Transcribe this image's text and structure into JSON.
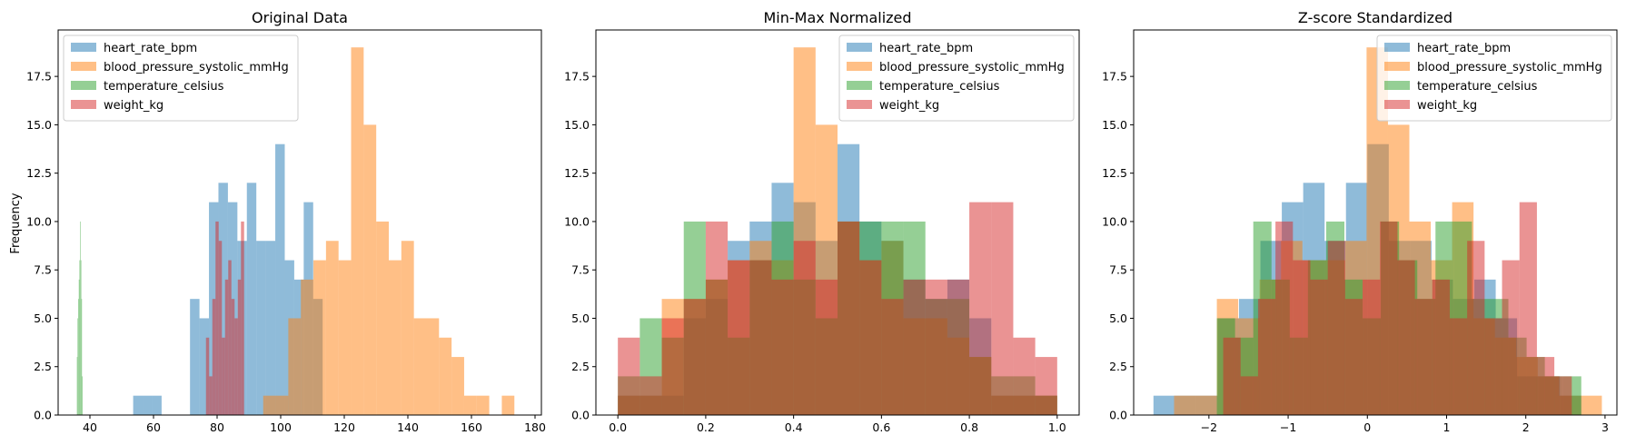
{
  "figure": {
    "ylabel": "Frequency"
  },
  "legend_entries": [
    {
      "name": "heart_rate_bpm",
      "color": "#1f77b4"
    },
    {
      "name": "blood_pressure_systolic_mmHg",
      "color": "#ff7f0e"
    },
    {
      "name": "temperature_celsius",
      "color": "#2ca02c"
    },
    {
      "name": "weight_kg",
      "color": "#d62728"
    }
  ],
  "chart_data": [
    {
      "type": "bar",
      "title": "Original Data",
      "xlabel": "",
      "ylabel": "Frequency",
      "xlim": [
        30,
        182
      ],
      "ylim": [
        0,
        19.9
      ],
      "xticks": [
        40,
        60,
        80,
        100,
        120,
        140,
        160,
        180
      ],
      "xtick_labels": [
        "40",
        "60",
        "80",
        "100",
        "120",
        "140",
        "160",
        "180"
      ],
      "yticks": [
        0,
        2.5,
        5,
        7.5,
        10,
        12.5,
        15,
        17.5
      ],
      "ytick_labels": [
        "0.0",
        "2.5",
        "5.0",
        "7.5",
        "10.0",
        "12.5",
        "15.0",
        "17.5"
      ],
      "legend_position": "upper left",
      "alpha": 0.5,
      "series": [
        {
          "name": "heart_rate_bpm",
          "color": "#1f77b4",
          "bin_start": 53.6,
          "bin_width": 2.98,
          "counts": [
            1,
            1,
            1,
            0,
            0,
            0,
            6,
            5,
            11,
            12,
            11,
            9,
            12,
            9,
            9,
            14,
            8,
            7,
            11,
            6
          ]
        },
        {
          "name": "blood_pressure_systolic_mmHg",
          "color": "#ff7f0e",
          "bin_start": 94.5,
          "bin_width": 3.95,
          "counts": [
            1,
            1,
            5,
            7,
            8,
            9,
            8,
            19,
            15,
            10,
            8,
            9,
            5,
            5,
            4,
            3,
            1,
            1,
            0,
            1
          ]
        },
        {
          "name": "temperature_celsius",
          "color": "#2ca02c",
          "bin_start": 35.9,
          "bin_width": 0.2,
          "counts": [
            3,
            5,
            6,
            7,
            8,
            10,
            8,
            6,
            2,
            0,
            0,
            0,
            0,
            0,
            0,
            0,
            0,
            0,
            0,
            0
          ]
        },
        {
          "name": "weight_kg",
          "color": "#d62728",
          "bin_start": 76.5,
          "bin_width": 1.0,
          "counts": [
            4,
            2,
            6,
            10,
            9,
            4,
            7,
            8,
            6,
            5,
            7,
            10,
            0,
            0,
            0,
            0,
            0,
            0,
            0,
            0
          ]
        }
      ]
    },
    {
      "type": "bar",
      "title": "Min-Max Normalized",
      "xlabel": "",
      "ylabel": "",
      "xlim": [
        -0.05,
        1.05
      ],
      "ylim": [
        0,
        19.9
      ],
      "xticks": [
        0,
        0.2,
        0.4,
        0.6,
        0.8,
        1.0
      ],
      "xtick_labels": [
        "0.0",
        "0.2",
        "0.4",
        "0.6",
        "0.8",
        "1.0"
      ],
      "yticks": [
        0,
        2.5,
        5,
        7.5,
        10,
        12.5,
        15,
        17.5
      ],
      "ytick_labels": [
        "0.0",
        "2.5",
        "5.0",
        "7.5",
        "10.0",
        "12.5",
        "15.0",
        "17.5"
      ],
      "legend_position": "upper right",
      "alpha": 0.5,
      "series": [
        {
          "name": "heart_rate_bpm",
          "color": "#1f77b4",
          "bin_start": 0,
          "bin_width": 0.05,
          "counts": [
            1,
            1,
            1,
            5,
            6,
            9,
            10,
            12,
            11,
            9,
            14,
            10,
            9,
            7,
            6,
            7,
            5,
            1,
            1,
            1
          ]
        },
        {
          "name": "blood_pressure_systolic_mmHg",
          "color": "#ff7f0e",
          "bin_start": 0,
          "bin_width": 0.05,
          "counts": [
            1,
            1,
            6,
            6,
            7,
            8,
            9,
            8,
            19,
            15,
            10,
            8,
            9,
            5,
            5,
            4,
            3,
            1,
            1,
            1
          ]
        },
        {
          "name": "temperature_celsius",
          "color": "#2ca02c",
          "bin_start": 0,
          "bin_width": 0.05,
          "counts": [
            2,
            5,
            4,
            10,
            7,
            4,
            8,
            10,
            7,
            5,
            10,
            10,
            10,
            10,
            6,
            6,
            3,
            2,
            2,
            1
          ]
        },
        {
          "name": "weight_kg",
          "color": "#d62728",
          "bin_start": 0,
          "bin_width": 0.05,
          "counts": [
            4,
            2,
            5,
            6,
            10,
            8,
            8,
            7,
            9,
            7,
            10,
            8,
            6,
            7,
            7,
            7,
            11,
            11,
            4,
            3
          ]
        }
      ]
    },
    {
      "type": "bar",
      "title": "Z-score Standardized",
      "xlabel": "",
      "ylabel": "",
      "xlim": [
        -2.95,
        3.15
      ],
      "ylim": [
        0,
        19.9
      ],
      "xticks": [
        -2,
        -1,
        0,
        1,
        2,
        3
      ],
      "xtick_labels": [
        "−2",
        "−1",
        "0",
        "1",
        "2",
        "3"
      ],
      "yticks": [
        0,
        2.5,
        5,
        7.5,
        10,
        12.5,
        15,
        17.5
      ],
      "ytick_labels": [
        "0.0",
        "2.5",
        "5.0",
        "7.5",
        "10.0",
        "12.5",
        "15.0",
        "17.5"
      ],
      "legend_position": "upper right",
      "alpha": 0.5,
      "series": [
        {
          "name": "heart_rate_bpm",
          "color": "#1f77b4",
          "bin_start": -2.7,
          "bin_width": 0.27,
          "counts": [
            1,
            1,
            1,
            5,
            6,
            9,
            11,
            12,
            9,
            12,
            14,
            9,
            9,
            7,
            6,
            7,
            5,
            2,
            2,
            1
          ]
        },
        {
          "name": "blood_pressure_systolic_mmHg",
          "color": "#ff7f0e",
          "bin_start": -2.44,
          "bin_width": 0.27,
          "counts": [
            1,
            1,
            6,
            5,
            7,
            9,
            8,
            8,
            9,
            19,
            15,
            10,
            8,
            11,
            5,
            4,
            3,
            2,
            1,
            1
          ]
        },
        {
          "name": "temperature_celsius",
          "color": "#2ca02c",
          "bin_start": -1.9,
          "bin_width": 0.23,
          "counts": [
            5,
            4,
            10,
            7,
            4,
            8,
            10,
            7,
            5,
            10,
            8,
            6,
            10,
            10,
            6,
            6,
            4,
            3,
            2,
            2
          ]
        },
        {
          "name": "weight_kg",
          "color": "#d62728",
          "bin_start": -1.82,
          "bin_width": 0.22,
          "counts": [
            4,
            2,
            6,
            10,
            8,
            7,
            9,
            6,
            7,
            10,
            8,
            6,
            7,
            5,
            9,
            5,
            8,
            11,
            3,
            2
          ]
        }
      ]
    }
  ]
}
